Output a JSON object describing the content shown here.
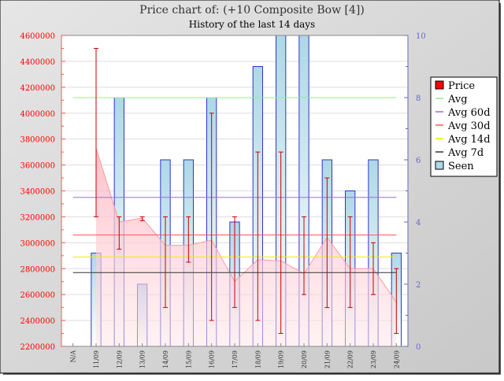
{
  "chart_data": {
    "type": "bar",
    "title": "Price chart of: (+10 Composite Bow [4])",
    "subtitle": "History of the last 14 days",
    "categories": [
      "N/A",
      "11/09",
      "12/09",
      "13/09",
      "14/09",
      "15/09",
      "16/09",
      "17/09",
      "18/09",
      "19/09",
      "20/09",
      "21/09",
      "22/09",
      "23/09",
      "24/09"
    ],
    "y_left": {
      "min": 2200000,
      "max": 4600000,
      "step": 200000,
      "tick_labels": [
        "2200000",
        "2400000",
        "2600000",
        "2800000",
        "3000000",
        "3200000",
        "3400000",
        "3600000",
        "3800000",
        "4000000",
        "4200000",
        "4400000",
        "4600000"
      ]
    },
    "y_right": {
      "min": 0,
      "max": 10,
      "step": 2,
      "tick_labels": [
        "0",
        "2",
        "4",
        "6",
        "8",
        "10"
      ]
    },
    "series": [
      {
        "name": "Price",
        "kind": "area-range",
        "avg": [
          null,
          3730000,
          3160000,
          3190000,
          2980000,
          2980000,
          3020000,
          2700000,
          2870000,
          2860000,
          2760000,
          3040000,
          2800000,
          2800000,
          2540000
        ],
        "high": [
          null,
          4500000,
          3200000,
          3200000,
          3200000,
          3200000,
          4000000,
          3200000,
          3700000,
          3700000,
          3200000,
          3500000,
          3200000,
          3000000,
          2800000
        ],
        "low": [
          null,
          3200000,
          2950000,
          3170000,
          2500000,
          2850000,
          2400000,
          2500000,
          2400000,
          2300000,
          2600000,
          2500000,
          2500000,
          2600000,
          2300000
        ],
        "color": "#ff0000"
      },
      {
        "name": "Avg",
        "kind": "hline",
        "value": 4120000,
        "color": "#90ee90"
      },
      {
        "name": "Avg 60d",
        "kind": "hline",
        "value": 3350000,
        "color": "#9370db"
      },
      {
        "name": "Avg 30d",
        "kind": "hline",
        "value": 3060000,
        "color": "#ff5555"
      },
      {
        "name": "Avg 14d",
        "kind": "hline",
        "value": 2890000,
        "color": "#eeee00"
      },
      {
        "name": "Avg 7d",
        "kind": "hline",
        "value": 2770000,
        "color": "#333333"
      },
      {
        "name": "Seen",
        "kind": "bar",
        "axis": "right",
        "values": [
          null,
          3,
          8,
          2,
          6,
          6,
          8,
          4,
          9,
          10,
          10,
          6,
          5,
          6,
          3
        ],
        "color": "#add8e6"
      }
    ],
    "legend_position": "right",
    "grid": true
  }
}
